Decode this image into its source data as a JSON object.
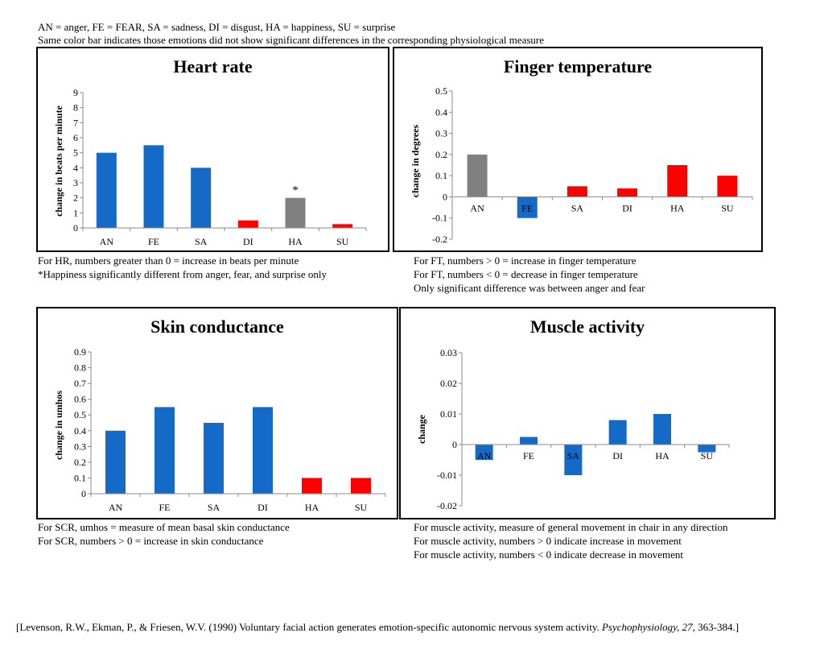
{
  "header": {
    "legend_line": "AN = anger, FE = FEAR, SA = sadness, DI = disgust, HA = happiness, SU = surprise",
    "colorbar_note": "Same color bar indicates those emotions did not show significant differences in the corresponding physiological measure"
  },
  "colors": {
    "blue": "#1569C7",
    "red": "#FF0000",
    "gray": "#808080"
  },
  "chart_data": [
    {
      "id": "hr",
      "type": "bar",
      "title": "Heart rate",
      "ylabel": "change in beats per minute",
      "categories": [
        "AN",
        "FE",
        "SA",
        "DI",
        "HA",
        "SU"
      ],
      "values": [
        5,
        5.5,
        4,
        0.5,
        2,
        0.25
      ],
      "bar_colors": [
        "blue",
        "blue",
        "blue",
        "red",
        "gray",
        "red"
      ],
      "ylim": [
        0,
        9
      ],
      "yticks": [
        "0",
        "1",
        "2",
        "3",
        "4",
        "5",
        "6",
        "7",
        "8",
        "9"
      ],
      "annotation": {
        "category": "HA",
        "text": "*"
      },
      "notes": [
        "For HR, numbers greater than 0 = increase in beats per minute",
        "*Happiness significantly different from anger, fear, and surprise only"
      ]
    },
    {
      "id": "ft",
      "type": "bar",
      "title": "Finger temperature",
      "ylabel": "change in degrees",
      "categories": [
        "AN",
        "FE",
        "SA",
        "DI",
        "HA",
        "SU"
      ],
      "values": [
        0.2,
        -0.1,
        0.05,
        0.04,
        0.15,
        0.1
      ],
      "bar_colors": [
        "gray",
        "blue",
        "red",
        "red",
        "red",
        "red"
      ],
      "ylim": [
        -0.2,
        0.5
      ],
      "yticks": [
        "-0.2",
        "-0.1",
        "0",
        "0.1",
        "0.2",
        "0.3",
        "0.4",
        "0.5"
      ],
      "notes": [
        "For FT, numbers > 0 = increase in finger temperature",
        "For FT, numbers < 0 = decrease in finger temperature",
        "Only significant difference was between anger and fear"
      ]
    },
    {
      "id": "scr",
      "type": "bar",
      "title": "Skin conductance",
      "ylabel": "change in umhos",
      "categories": [
        "AN",
        "FE",
        "SA",
        "DI",
        "HA",
        "SU"
      ],
      "values": [
        0.4,
        0.55,
        0.45,
        0.55,
        0.1,
        0.1
      ],
      "bar_colors": [
        "blue",
        "blue",
        "blue",
        "blue",
        "red",
        "red"
      ],
      "ylim": [
        0,
        0.9
      ],
      "yticks": [
        "0",
        "0.1",
        "0.2",
        "0.3",
        "0.4",
        "0.5",
        "0.6",
        "0.7",
        "0.8",
        "0.9"
      ],
      "notes": [
        "For SCR, umhos = measure of mean basal skin conductance",
        "For SCR, numbers > 0 = increase in skin conductance"
      ]
    },
    {
      "id": "ma",
      "type": "bar",
      "title": "Muscle activity",
      "ylabel": "change",
      "categories": [
        "AN",
        "FE",
        "SA",
        "DI",
        "HA",
        "SU"
      ],
      "values": [
        -0.005,
        0.0025,
        -0.01,
        0.008,
        0.01,
        -0.0025
      ],
      "bar_colors": [
        "blue",
        "blue",
        "blue",
        "blue",
        "blue",
        "blue"
      ],
      "ylim": [
        -0.02,
        0.03
      ],
      "yticks": [
        "-0.02",
        "-0.01",
        "0",
        "0.01",
        "0.02",
        "0.03"
      ],
      "notes": [
        "For muscle activity, measure of general movement in chair in any direction",
        "For muscle activity, numbers > 0 indicate increase in movement",
        "For muscle activity, numbers < 0 indicate decrease in movement"
      ]
    }
  ],
  "citation": {
    "pre": "[Levenson, R.W., Ekman, P., & Friesen, W.V. (1990) Voluntary facial action generates emotion-specific autonomic nervous system activity. ",
    "journal": "Psychophysiology,",
    "volume": "27,",
    "post": " 363-384.]"
  }
}
